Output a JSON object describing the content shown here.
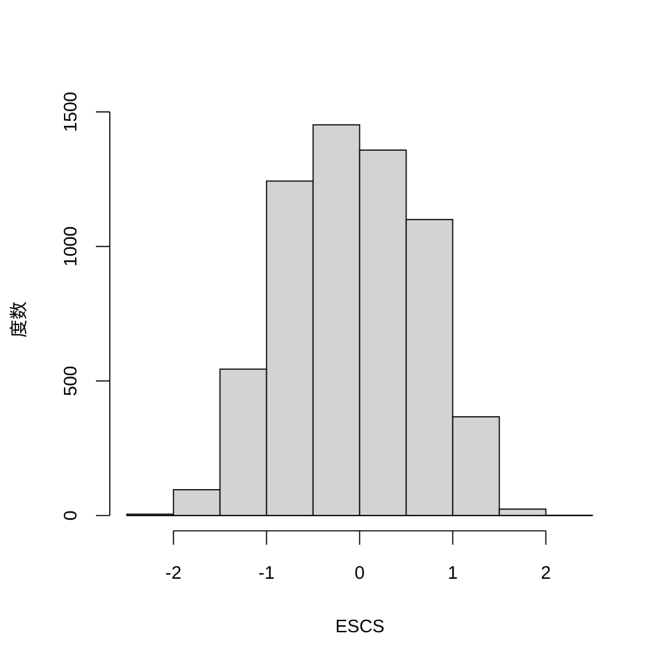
{
  "chart_data": {
    "type": "bar",
    "subtype": "histogram",
    "xlabel": "ESCS",
    "ylabel": "度数",
    "bins": [
      {
        "start": -2.5,
        "end": -2.0,
        "count": 5
      },
      {
        "start": -2.0,
        "end": -1.5,
        "count": 96
      },
      {
        "start": -1.5,
        "end": -1.0,
        "count": 544
      },
      {
        "start": -1.0,
        "end": -0.5,
        "count": 1243
      },
      {
        "start": -0.5,
        "end": 0.0,
        "count": 1452
      },
      {
        "start": 0.0,
        "end": 0.5,
        "count": 1358
      },
      {
        "start": 0.5,
        "end": 1.0,
        "count": 1100
      },
      {
        "start": 1.0,
        "end": 1.5,
        "count": 367
      },
      {
        "start": 1.5,
        "end": 2.0,
        "count": 24
      },
      {
        "start": 2.0,
        "end": 2.5,
        "count": 1
      }
    ],
    "x_ticks": [
      -2,
      -1,
      0,
      1,
      2
    ],
    "x_tick_labels": [
      "-2",
      "-1",
      "0",
      "1",
      "2"
    ],
    "y_ticks": [
      0,
      500,
      1000,
      1500
    ],
    "y_tick_labels": [
      "0",
      "500",
      "1000",
      "1500"
    ],
    "xlim": [
      -2.5,
      2.5
    ],
    "ylim": [
      0,
      1500
    ],
    "grid": false,
    "bar_fill": "#d3d3d3",
    "bar_stroke": "#000000"
  }
}
